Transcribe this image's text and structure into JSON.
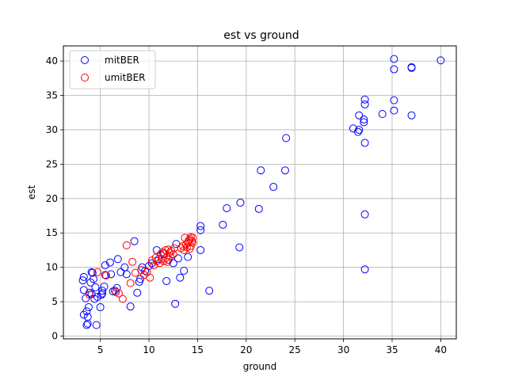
{
  "chart_data": {
    "type": "scatter",
    "title": "est vs ground",
    "xlabel": "ground",
    "ylabel": "est",
    "xlim": [
      1.2,
      41.6
    ],
    "ylim": [
      -0.4,
      42.2
    ],
    "xticks": [
      5,
      10,
      15,
      20,
      25,
      30,
      35,
      40
    ],
    "yticks": [
      0,
      5,
      10,
      15,
      20,
      25,
      30,
      35,
      40
    ],
    "grid": true,
    "legend_position": "top-left",
    "series": [
      {
        "name": "mitBER",
        "color": "#0000ff",
        "marker": "hollow-circle",
        "points": [
          [
            3.2,
            8.1
          ],
          [
            3.3,
            8.6
          ],
          [
            3.3,
            6.7
          ],
          [
            3.5,
            5.5
          ],
          [
            3.3,
            3.1
          ],
          [
            3.6,
            1.6
          ],
          [
            3.7,
            1.8
          ],
          [
            3.7,
            2.8
          ],
          [
            3.6,
            3.6
          ],
          [
            3.8,
            4.2
          ],
          [
            3.9,
            6.3
          ],
          [
            4.0,
            7.8
          ],
          [
            4.1,
            9.3
          ],
          [
            4.2,
            9.2
          ],
          [
            4.3,
            8.3
          ],
          [
            4.4,
            5.4
          ],
          [
            4.1,
            6.1
          ],
          [
            4.5,
            7.1
          ],
          [
            4.6,
            1.6
          ],
          [
            4.7,
            5.7
          ],
          [
            5.0,
            4.2
          ],
          [
            5.1,
            6.0
          ],
          [
            5.2,
            6.6
          ],
          [
            5.2,
            6.2
          ],
          [
            5.4,
            7.2
          ],
          [
            5.5,
            8.9
          ],
          [
            5.5,
            10.3
          ],
          [
            6.0,
            10.7
          ],
          [
            6.1,
            9.0
          ],
          [
            6.3,
            6.5
          ],
          [
            6.5,
            6.6
          ],
          [
            6.7,
            7.0
          ],
          [
            6.8,
            11.2
          ],
          [
            7.1,
            9.3
          ],
          [
            7.5,
            10.0
          ],
          [
            7.7,
            9.0
          ],
          [
            8.1,
            4.3
          ],
          [
            8.5,
            13.8
          ],
          [
            8.8,
            6.3
          ],
          [
            9.0,
            7.9
          ],
          [
            9.1,
            8.3
          ],
          [
            9.3,
            10.0
          ],
          [
            9.6,
            9.5
          ],
          [
            10.0,
            10.2
          ],
          [
            10.3,
            10.6
          ],
          [
            10.8,
            12.5
          ],
          [
            11.0,
            11.2
          ],
          [
            11.5,
            12.0
          ],
          [
            11.8,
            8.0
          ],
          [
            12.0,
            11.1
          ],
          [
            12.5,
            10.6
          ],
          [
            12.7,
            4.7
          ],
          [
            12.8,
            13.4
          ],
          [
            13.0,
            11.3
          ],
          [
            13.2,
            8.5
          ],
          [
            13.6,
            9.5
          ],
          [
            14.0,
            11.5
          ],
          [
            15.3,
            12.5
          ],
          [
            15.3,
            16.0
          ],
          [
            15.3,
            15.4
          ],
          [
            16.2,
            6.6
          ],
          [
            17.6,
            16.2
          ],
          [
            18.0,
            18.6
          ],
          [
            19.3,
            12.9
          ],
          [
            19.4,
            19.4
          ],
          [
            21.3,
            18.5
          ],
          [
            21.5,
            24.1
          ],
          [
            22.8,
            21.7
          ],
          [
            24.0,
            24.1
          ],
          [
            24.1,
            28.8
          ],
          [
            31.0,
            30.2
          ],
          [
            31.5,
            29.7
          ],
          [
            31.6,
            30.0
          ],
          [
            31.6,
            32.1
          ],
          [
            32.1,
            31.5
          ],
          [
            32.1,
            31.1
          ],
          [
            32.2,
            33.7
          ],
          [
            32.2,
            34.4
          ],
          [
            32.2,
            28.1
          ],
          [
            32.2,
            17.7
          ],
          [
            32.2,
            9.7
          ],
          [
            34.0,
            32.3
          ],
          [
            35.2,
            40.3
          ],
          [
            35.2,
            38.8
          ],
          [
            35.2,
            34.3
          ],
          [
            35.2,
            32.8
          ],
          [
            37.0,
            39.0
          ],
          [
            37.0,
            39.1
          ],
          [
            37.0,
            32.1
          ],
          [
            40.0,
            40.1
          ]
        ]
      },
      {
        "name": "umitBER",
        "color": "#ff0000",
        "marker": "hollow-circle",
        "points": [
          [
            3.9,
            6.0
          ],
          [
            4.7,
            9.3
          ],
          [
            5.6,
            8.8
          ],
          [
            6.6,
            6.4
          ],
          [
            6.9,
            6.2
          ],
          [
            7.3,
            5.4
          ],
          [
            7.7,
            13.2
          ],
          [
            8.1,
            7.7
          ],
          [
            8.3,
            10.8
          ],
          [
            8.6,
            9.2
          ],
          [
            9.2,
            9.6
          ],
          [
            9.5,
            8.9
          ],
          [
            9.8,
            9.3
          ],
          [
            10.1,
            8.5
          ],
          [
            10.3,
            11.0
          ],
          [
            10.5,
            10.3
          ],
          [
            10.7,
            11.4
          ],
          [
            10.8,
            10.9
          ],
          [
            11.1,
            10.6
          ],
          [
            11.2,
            11.9
          ],
          [
            11.3,
            11.2
          ],
          [
            11.4,
            12.2
          ],
          [
            11.5,
            10.9
          ],
          [
            11.6,
            12.0
          ],
          [
            11.7,
            12.5
          ],
          [
            11.8,
            11.4
          ],
          [
            11.9,
            10.8
          ],
          [
            12.0,
            12.6
          ],
          [
            12.1,
            12.1
          ],
          [
            12.2,
            11.6
          ],
          [
            12.3,
            12.4
          ],
          [
            12.5,
            11.9
          ],
          [
            12.6,
            12.8
          ],
          [
            13.3,
            12.8
          ],
          [
            13.5,
            13.1
          ],
          [
            13.6,
            12.5
          ],
          [
            13.7,
            14.3
          ],
          [
            13.8,
            13.3
          ],
          [
            13.9,
            12.9
          ],
          [
            14.0,
            13.6
          ],
          [
            14.1,
            13.9
          ],
          [
            14.2,
            14.1
          ],
          [
            14.3,
            13.1
          ],
          [
            14.3,
            14.4
          ],
          [
            14.4,
            13.8
          ],
          [
            14.5,
            14.3
          ],
          [
            14.5,
            13.6
          ],
          [
            14.2,
            12.7
          ]
        ]
      }
    ]
  }
}
